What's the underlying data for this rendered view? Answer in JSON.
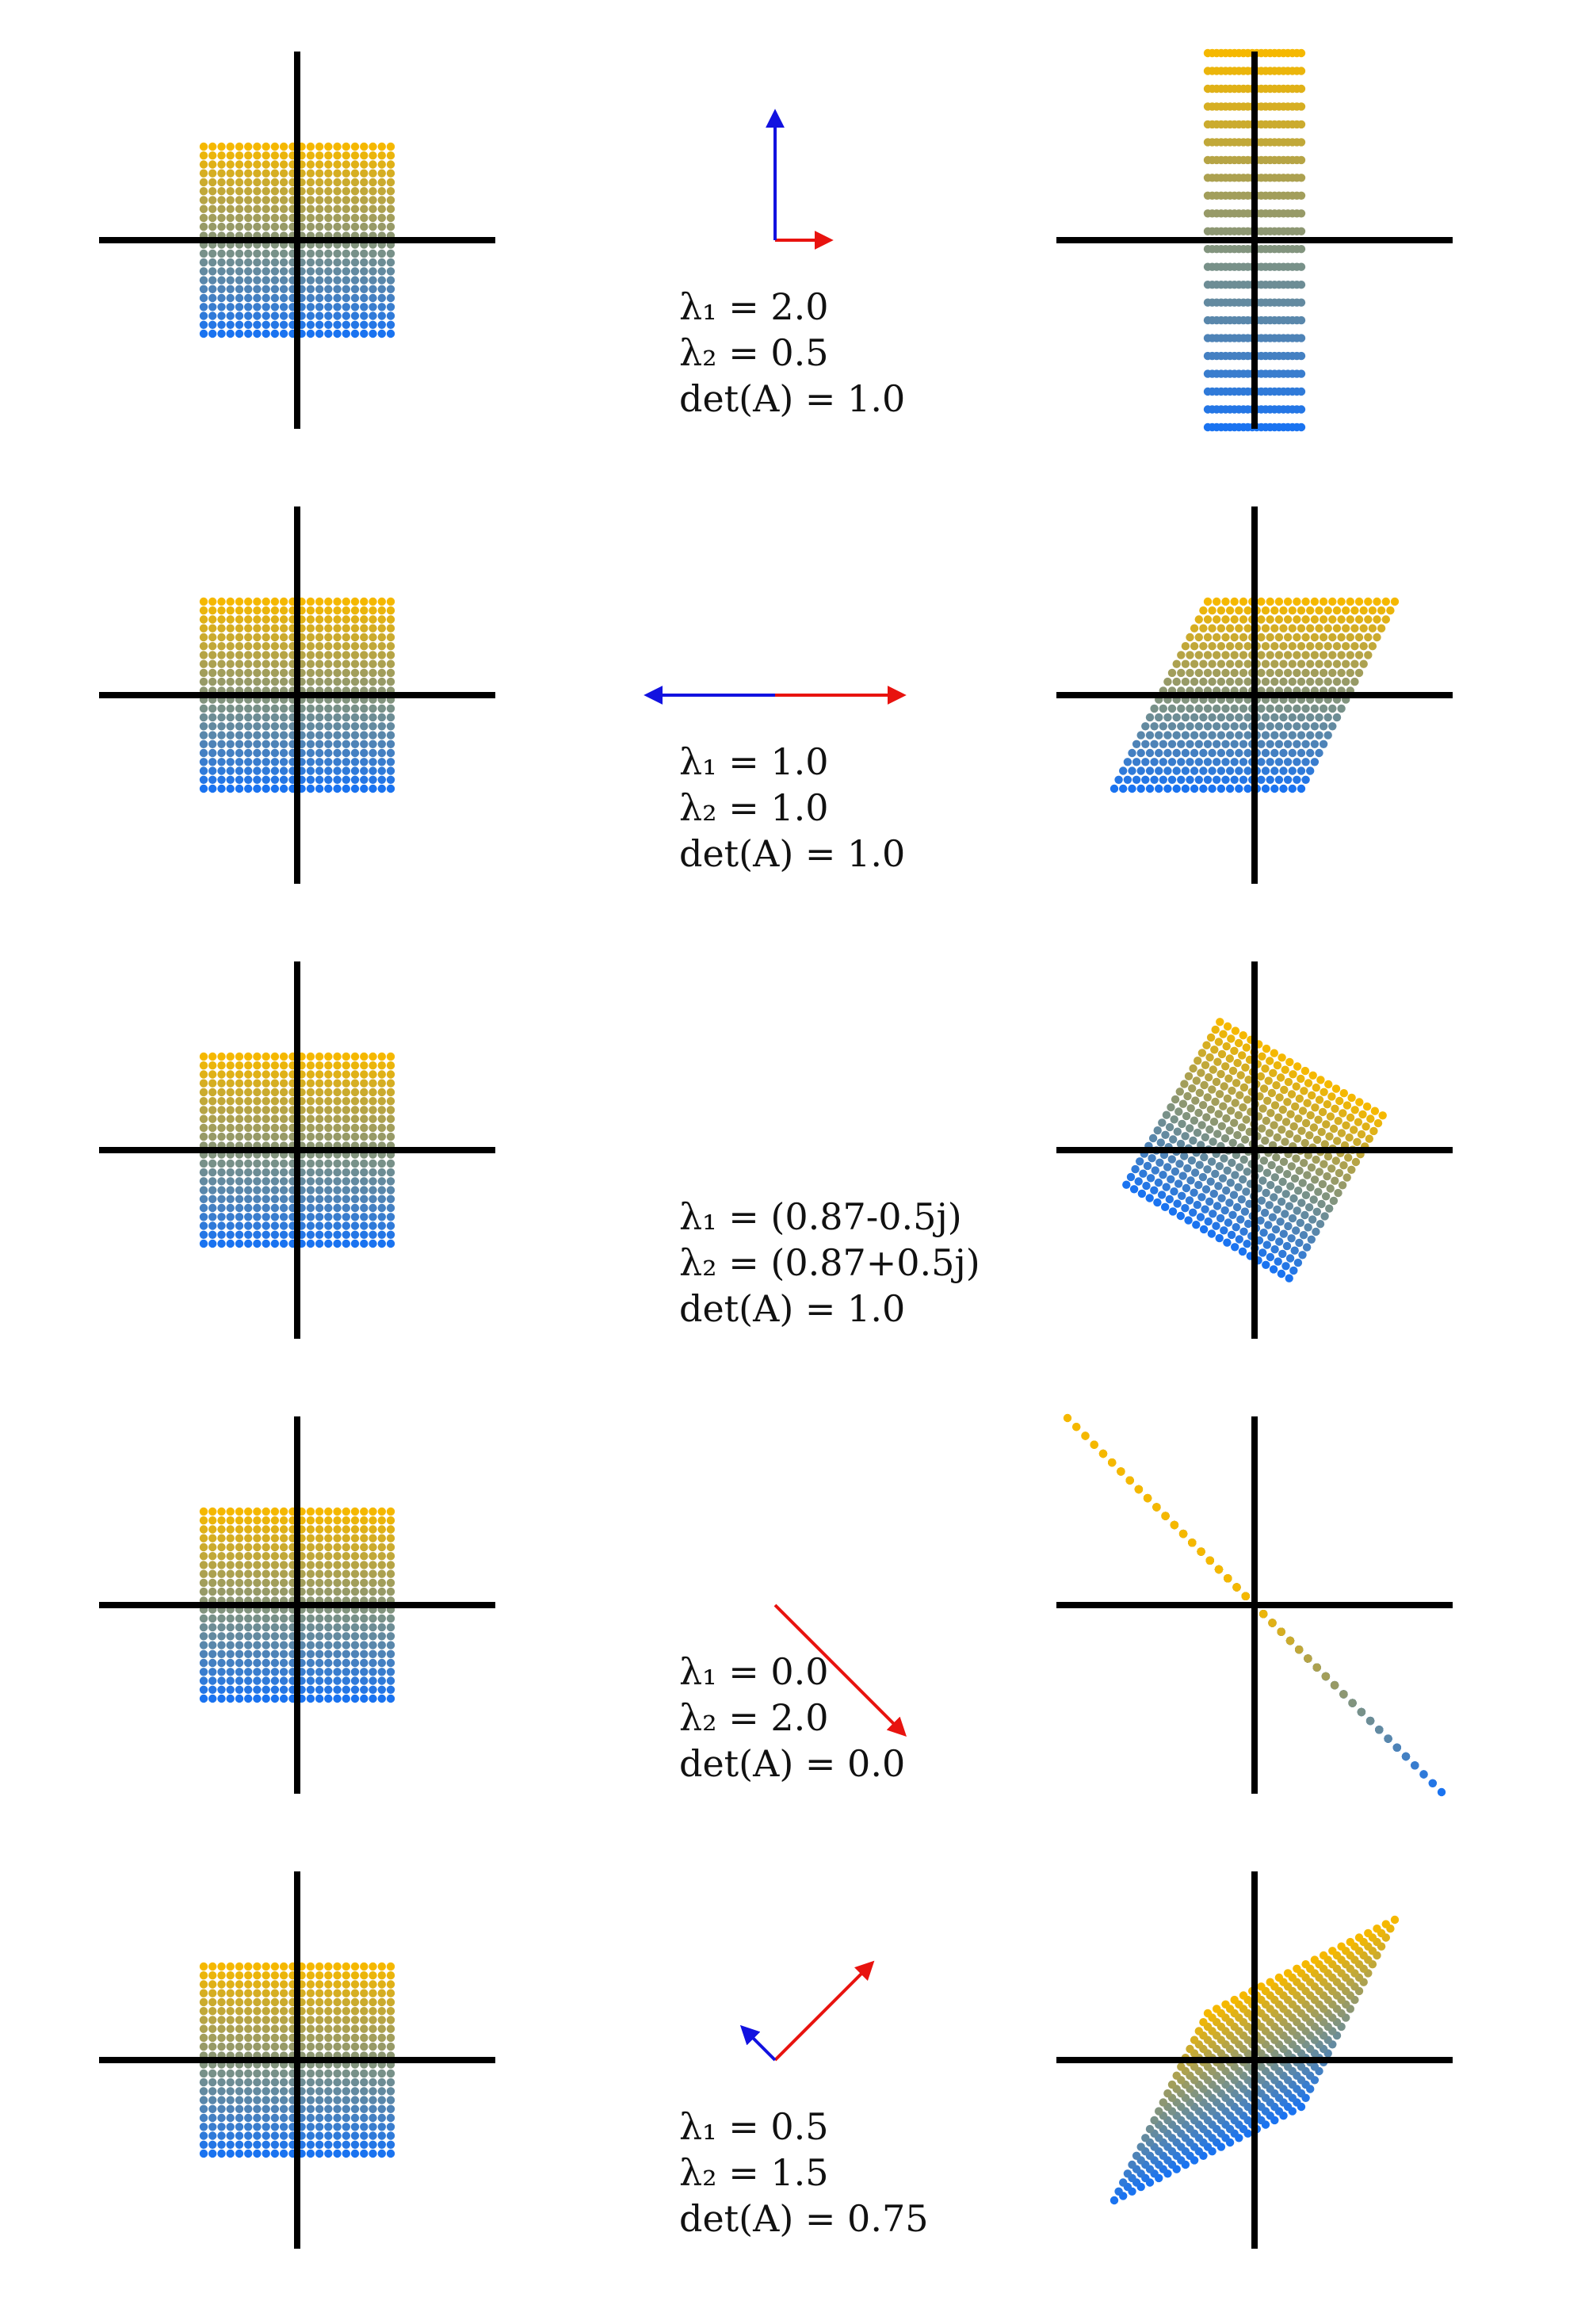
{
  "colors": {
    "top": "#f5b800",
    "bottom": "#1a73f0",
    "axis": "#000000",
    "eigvec1": "#e8130f",
    "eigvec2": "#1212e0"
  },
  "rows": [
    {
      "matrix": [
        [
          0.5,
          0.0
        ],
        [
          0.0,
          2.0
        ]
      ],
      "eigenvectors": [
        [
          1,
          0
        ],
        [
          0,
          1
        ]
      ],
      "eigenvalues": [
        0.5,
        2.0
      ],
      "vector_display": [
        0.6,
        1.4
      ],
      "labels": {
        "lambda1": "λ₁ = 2.0",
        "lambda2": "λ₂ = 0.5",
        "det": "det(A) = 1.0"
      }
    },
    {
      "matrix": [
        [
          1.0,
          0.5
        ],
        [
          0.0,
          1.0
        ]
      ],
      "eigenvectors": [
        [
          1,
          0
        ],
        [
          -1,
          0
        ]
      ],
      "eigenvalues": [
        1.0,
        1.0
      ],
      "vector_display": [
        1.4,
        1.4
      ],
      "labels": {
        "lambda1": "λ₁ = 1.0",
        "lambda2": "λ₂ = 1.0",
        "det": "det(A) = 1.0"
      }
    },
    {
      "matrix": [
        [
          0.87,
          0.5
        ],
        [
          -0.5,
          0.87
        ]
      ],
      "eigenvectors": [],
      "eigenvalues": [],
      "vector_display": [],
      "labels": {
        "lambda1": "λ₁ = (0.87-0.5j)",
        "lambda2": "λ₂ = (0.87+0.5j)",
        "det": "det(A) = 1.0"
      }
    },
    {
      "matrix": [
        [
          1.0,
          -1.0
        ],
        [
          -1.0,
          1.0
        ]
      ],
      "eigenvectors": [
        [
          0.7071,
          -0.7071
        ],
        [
          0.7071,
          0.7071
        ]
      ],
      "eigenvalues": [
        2.0,
        0.0
      ],
      "vector_display": [
        2.0,
        0.0
      ],
      "labels": {
        "lambda1": "λ₁ = 0.0",
        "lambda2": "λ₂ = 2.0",
        "det": "det(A) = 0.0"
      }
    },
    {
      "matrix": [
        [
          1.0,
          0.5
        ],
        [
          0.5,
          1.0
        ]
      ],
      "eigenvectors": [
        [
          0.7071,
          0.7071
        ],
        [
          -0.7071,
          0.7071
        ]
      ],
      "eigenvalues": [
        1.5,
        0.5
      ],
      "vector_display": [
        1.5,
        0.5
      ],
      "labels": {
        "lambda1": "λ₁ = 0.5",
        "lambda2": "λ₂ = 1.5",
        "det": "det(A) = 0.75"
      }
    }
  ]
}
